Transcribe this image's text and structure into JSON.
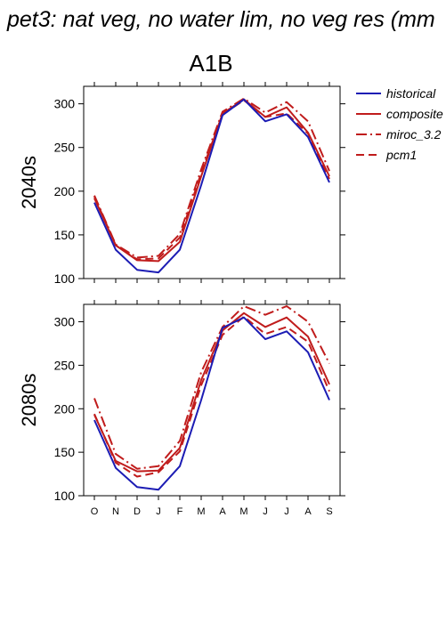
{
  "page_title": "pet3: nat veg, no water lim, no veg res (mm",
  "scenario": "A1B",
  "colors": {
    "historical": "#1c1cb4",
    "model": "#c01c1c",
    "axis": "#000000"
  },
  "chart_data": [
    {
      "type": "line",
      "panel_label": "2040s",
      "categories": [
        "O",
        "N",
        "D",
        "J",
        "F",
        "M",
        "A",
        "M",
        "J",
        "J",
        "A",
        "S"
      ],
      "ylim": [
        100,
        320
      ],
      "yticks": [
        100,
        150,
        200,
        250,
        300
      ],
      "show_xtick_labels": false,
      "series": [
        {
          "name": "historical",
          "style": "solid",
          "color": "#1c1cb4",
          "values": [
            187,
            133,
            110,
            107,
            133,
            207,
            287,
            305,
            280,
            288,
            262,
            210
          ]
        },
        {
          "name": "composite",
          "style": "solid",
          "color": "#c01c1c",
          "values": [
            192,
            138,
            121,
            120,
            142,
            217,
            289,
            305,
            285,
            296,
            267,
            217
          ]
        },
        {
          "name": "miroc_3.2",
          "style": "dashdot",
          "color": "#c01c1c",
          "values": [
            195,
            139,
            124,
            126,
            151,
            225,
            291,
            306,
            290,
            302,
            280,
            223
          ]
        },
        {
          "name": "pcm1",
          "style": "dashed",
          "color": "#c01c1c",
          "values": [
            194,
            138,
            122,
            123,
            147,
            221,
            288,
            304,
            285,
            289,
            266,
            214
          ]
        }
      ]
    },
    {
      "type": "line",
      "panel_label": "2080s",
      "categories": [
        "O",
        "N",
        "D",
        "J",
        "F",
        "M",
        "A",
        "M",
        "J",
        "J",
        "A",
        "S"
      ],
      "ylim": [
        100,
        320
      ],
      "yticks": [
        100,
        150,
        200,
        250,
        300
      ],
      "show_xtick_labels": true,
      "series": [
        {
          "name": "historical",
          "style": "solid",
          "color": "#1c1cb4",
          "values": [
            187,
            132,
            110,
            107,
            134,
            210,
            293,
            305,
            280,
            289,
            265,
            210
          ]
        },
        {
          "name": "composite",
          "style": "solid",
          "color": "#c01c1c",
          "values": [
            193,
            140,
            128,
            129,
            155,
            233,
            290,
            310,
            294,
            305,
            283,
            228
          ]
        },
        {
          "name": "miroc_3.2",
          "style": "dashdot",
          "color": "#c01c1c",
          "values": [
            212,
            148,
            131,
            134,
            163,
            242,
            294,
            318,
            308,
            318,
            300,
            252
          ]
        },
        {
          "name": "pcm1",
          "style": "dashed",
          "color": "#c01c1c",
          "values": [
            194,
            138,
            122,
            127,
            151,
            227,
            285,
            306,
            286,
            294,
            277,
            220
          ]
        }
      ]
    }
  ],
  "legend": [
    "historical",
    "composite",
    "miroc_3.2",
    "pcm1"
  ]
}
